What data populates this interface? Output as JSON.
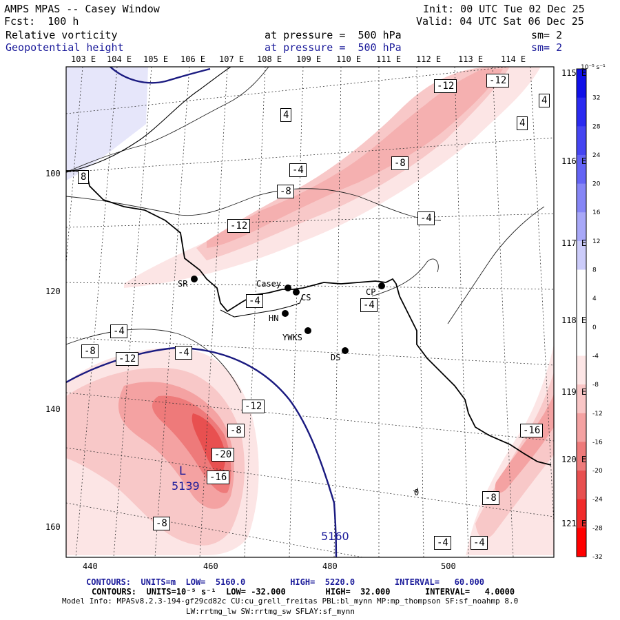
{
  "header": {
    "title": "AMPS MPAS -- Casey Window",
    "forecast": "Fcst:  100 h",
    "init": "Init: 00 UTC Tue 02 Dec 25",
    "valid": "Valid: 04 UTC Sat 06 Dec 25",
    "field1": {
      "name": "Relative vorticity",
      "level": "at pressure =  500 hPa",
      "smooth": "sm= 2"
    },
    "field2": {
      "name": "Geopotential height",
      "level": "at pressure =  500 hPa",
      "smooth": "sm= 2"
    }
  },
  "axes": {
    "top_longitudes": [
      "103 E",
      "104 E",
      "105 E",
      "106 E",
      "107 E",
      "108 E",
      "109 E",
      "110 E",
      "111 E",
      "112 E",
      "113 E",
      "114 E"
    ],
    "right_longitudes": [
      "115 E",
      "116 E",
      "117 E",
      "118 E",
      "119 E",
      "120 E",
      "121 E"
    ],
    "x_ticks": [
      "440",
      "460",
      "480",
      "500"
    ],
    "y_ticks": [
      "100",
      "120",
      "140",
      "160"
    ]
  },
  "colorbar": {
    "units": "10⁻⁵ s⁻¹",
    "levels": [
      "32",
      "28",
      "24",
      "20",
      "16",
      "12",
      "8",
      "4",
      "0",
      "-4",
      "-8",
      "-12",
      "-16",
      "-20",
      "-24",
      "-28",
      "-32"
    ],
    "colors": [
      "#1010e8",
      "#2a2af0",
      "#4545f2",
      "#6464f4",
      "#8686f6",
      "#a8a8f8",
      "#ccccfa",
      "#ffffff",
      "#ffffff",
      "#ffffff",
      "#fde6e6",
      "#f9c6c6",
      "#f4a2a2",
      "#ee7a7a",
      "#e85050",
      "#f02a2a",
      "#ff0000"
    ]
  },
  "map_labels": {
    "vorticity": [
      "-12",
      "-12",
      "-8",
      "-8",
      "-4",
      "-4",
      "-12",
      "-4",
      "-4",
      "-8",
      "-12",
      "-12",
      "-8",
      "-20",
      "-16",
      "-8",
      "-16",
      "-8",
      "-4",
      "-4",
      "-4",
      "-4"
    ],
    "positive": [
      "4",
      "4",
      "4",
      "8"
    ],
    "stations": [
      "SR",
      "Casey",
      "CS",
      "CP",
      "HN",
      "YWKS",
      "DS"
    ],
    "low_letter": "L",
    "low_value": "5139",
    "height_contour": "5160",
    "zero_label": "0"
  },
  "footer": {
    "line1": "CONTOURS:  UNITS=m  LOW=  5160.0         HIGH=  5220.0        INTERVAL=   60.000",
    "line2": "CONTOURS:  UNITS=10⁻⁵ s⁻¹  LOW= -32.000        HIGH=  32.000       INTERVAL=   4.0000",
    "line3": "Model Info: MPASv8.2.3-194-gf29cd82c CU:cu_grell_freitas PBL:bl_mynn MP:mp_thompson SF:sf_noahmp 8.0",
    "line4": "LW:rrtmg_lw SW:rrtmg_sw SFLAY:sf_mynn"
  }
}
